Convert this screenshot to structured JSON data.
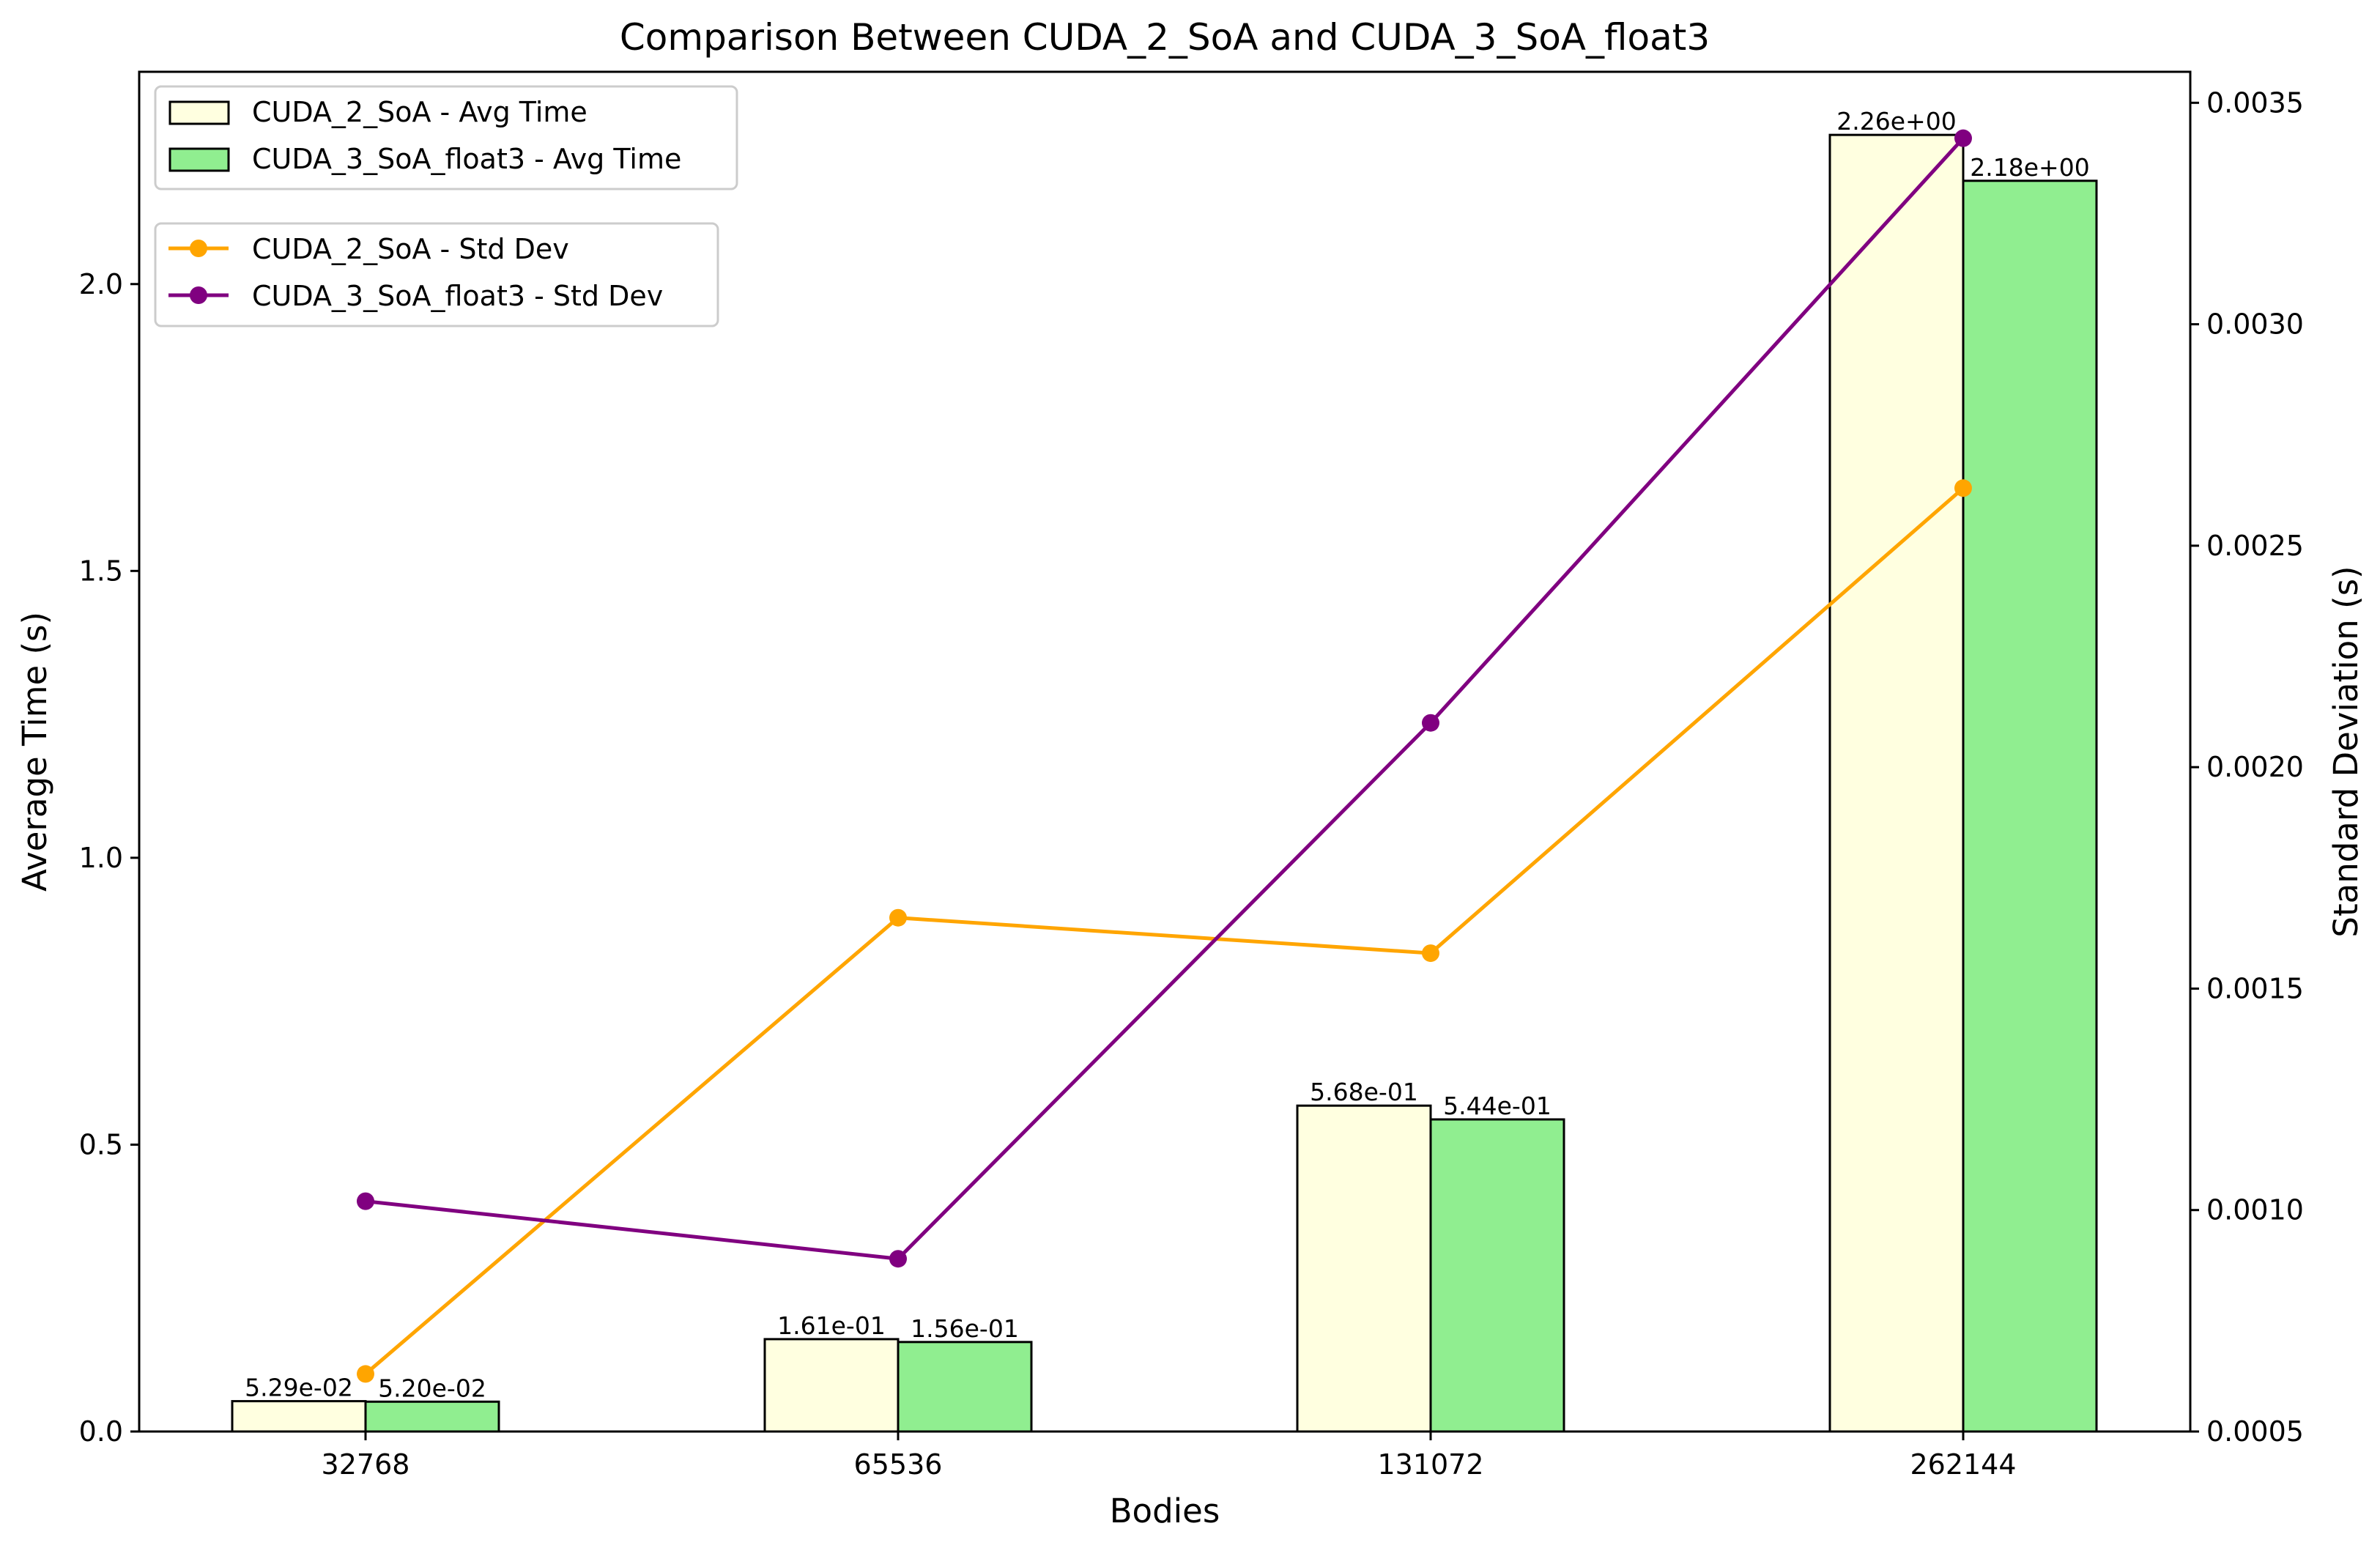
{
  "chart_data": {
    "type": "bar",
    "title": "Comparison Between CUDA_2_SoA and CUDA_3_SoA_float3",
    "xlabel": "Bodies",
    "ylabel": "Average Time (s)",
    "y2label": "Standard Deviation (s)",
    "categories": [
      "32768",
      "65536",
      "131072",
      "262144"
    ],
    "ylim": [
      0,
      2.37
    ],
    "y2lim": [
      0.0005,
      0.00357
    ],
    "yticks": [
      0.0,
      0.5,
      1.0,
      1.5,
      2.0
    ],
    "ytick_labels": [
      "0.0",
      "0.5",
      "1.0",
      "1.5",
      "2.0"
    ],
    "y2ticks": [
      0.0005,
      0.001,
      0.0015,
      0.002,
      0.0025,
      0.003,
      0.0035
    ],
    "y2tick_labels": [
      "0.0005",
      "0.0010",
      "0.0015",
      "0.0020",
      "0.0025",
      "0.0030",
      "0.0035"
    ],
    "bar_series": [
      {
        "name": "CUDA_2_SoA - Avg Time",
        "color": "#ffffe0",
        "values": [
          0.0529,
          0.161,
          0.568,
          2.26
        ],
        "labels": [
          "5.29e-02",
          "1.61e-01",
          "5.68e-01",
          "2.26e+00"
        ]
      },
      {
        "name": "CUDA_3_SoA_float3 - Avg Time",
        "color": "#90ee90",
        "values": [
          0.052,
          0.156,
          0.544,
          2.18
        ],
        "labels": [
          "5.20e-02",
          "1.56e-01",
          "5.44e-01",
          "2.18e+00"
        ]
      }
    ],
    "line_series": [
      {
        "name": "CUDA_2_SoA - Std Dev",
        "color": "#ffa500",
        "values": [
          0.00063,
          0.00166,
          0.00158,
          0.00263
        ]
      },
      {
        "name": "CUDA_3_SoA_float3 - Std Dev",
        "color": "#800080",
        "values": [
          0.00102,
          0.00089,
          0.0021,
          0.00342
        ]
      }
    ],
    "grid": false,
    "legend_placement": "top-left"
  }
}
